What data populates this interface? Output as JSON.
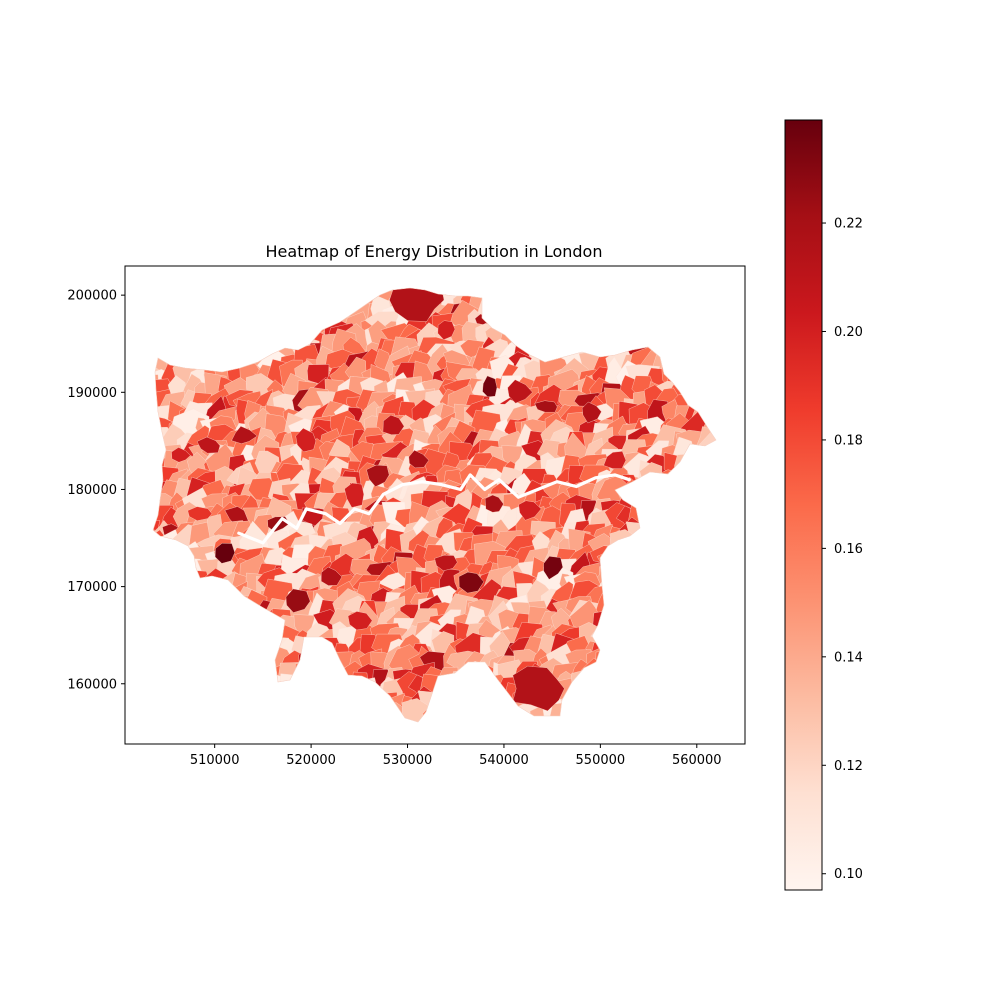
{
  "chart_data": {
    "type": "heatmap",
    "title": "Heatmap of Energy Distribution in London",
    "xlabel": "",
    "ylabel": "",
    "xlim": [
      500700,
      565000
    ],
    "ylim": [
      153800,
      203000
    ],
    "x_ticks": [
      510000,
      520000,
      530000,
      540000,
      550000,
      560000
    ],
    "y_ticks": [
      160000,
      170000,
      180000,
      190000,
      200000
    ],
    "colorbar": {
      "colormap": "Reds",
      "range": [
        0.097,
        0.239
      ],
      "ticks": [
        0.1,
        0.12,
        0.14,
        0.16,
        0.18,
        0.2,
        0.22
      ],
      "colors": [
        "#fff5f0",
        "#fee0d2",
        "#fcbba1",
        "#fc9272",
        "#fb6a4a",
        "#ef3b2c",
        "#cb181d",
        "#a50f15",
        "#67000d"
      ]
    },
    "highlighted_regions": [
      {
        "x": 531000,
        "y": 199500,
        "value": 0.215
      },
      {
        "x": 543500,
        "y": 159500,
        "value": 0.215
      },
      {
        "x": 511000,
        "y": 173500,
        "value": 0.239
      },
      {
        "x": 545000,
        "y": 172000,
        "value": 0.235
      },
      {
        "x": 536500,
        "y": 170500,
        "value": 0.232
      },
      {
        "x": 518500,
        "y": 168500,
        "value": 0.225
      },
      {
        "x": 522000,
        "y": 171000,
        "value": 0.215
      },
      {
        "x": 516500,
        "y": 176500,
        "value": 0.225
      },
      {
        "x": 509500,
        "y": 184500,
        "value": 0.21
      },
      {
        "x": 513000,
        "y": 185500,
        "value": 0.215
      },
      {
        "x": 506500,
        "y": 183500,
        "value": 0.2
      },
      {
        "x": 541500,
        "y": 190000,
        "value": 0.21
      },
      {
        "x": 538500,
        "y": 190500,
        "value": 0.235
      },
      {
        "x": 544500,
        "y": 188500,
        "value": 0.22
      },
      {
        "x": 549000,
        "y": 188000,
        "value": 0.215
      },
      {
        "x": 531000,
        "y": 183000,
        "value": 0.22
      },
      {
        "x": 539000,
        "y": 178500,
        "value": 0.22
      },
      {
        "x": 534000,
        "y": 172500,
        "value": 0.21
      },
      {
        "x": 524500,
        "y": 179500,
        "value": 0.2
      },
      {
        "x": 527000,
        "y": 181500,
        "value": 0.22
      },
      {
        "x": 508500,
        "y": 177500,
        "value": 0.19
      },
      {
        "x": 542500,
        "y": 178000,
        "value": 0.2
      },
      {
        "x": 525000,
        "y": 166500,
        "value": 0.2
      },
      {
        "x": 551500,
        "y": 183000,
        "value": 0.2
      },
      {
        "x": 519500,
        "y": 185000,
        "value": 0.2
      },
      {
        "x": 528500,
        "y": 186500,
        "value": 0.21
      },
      {
        "x": 534000,
        "y": 196500,
        "value": 0.2
      }
    ],
    "river": [
      [
        512500,
        175500
      ],
      [
        515000,
        174500
      ],
      [
        517000,
        177000
      ],
      [
        518500,
        176000
      ],
      [
        519500,
        178000
      ],
      [
        521500,
        177500
      ],
      [
        523000,
        176500
      ],
      [
        524500,
        178000
      ],
      [
        526000,
        177500
      ],
      [
        527500,
        179500
      ],
      [
        529500,
        180500
      ],
      [
        531500,
        180800
      ],
      [
        533500,
        180500
      ],
      [
        535500,
        180000
      ],
      [
        536500,
        181500
      ],
      [
        538000,
        180000
      ],
      [
        539500,
        181000
      ],
      [
        541500,
        179200
      ],
      [
        543500,
        180000
      ],
      [
        545500,
        180800
      ],
      [
        547500,
        180300
      ],
      [
        549500,
        181200
      ],
      [
        551500,
        181500
      ],
      [
        553000,
        181000
      ]
    ]
  }
}
